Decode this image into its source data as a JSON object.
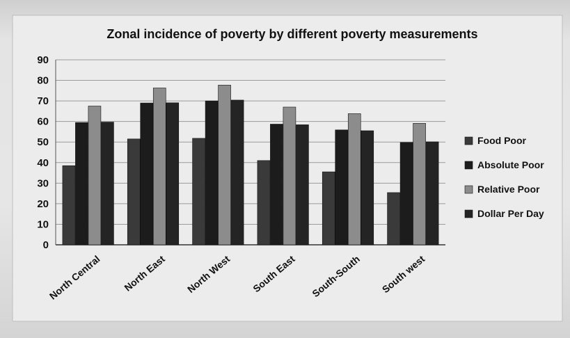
{
  "chart_data": {
    "type": "bar",
    "title": "Zonal incidence of poverty by different poverty measurements",
    "xlabel": "",
    "ylabel": "",
    "ylim": [
      0,
      90
    ],
    "yticks": [
      0,
      10,
      20,
      30,
      40,
      50,
      60,
      70,
      80,
      90
    ],
    "grid": true,
    "legend_position": "right",
    "categories": [
      "North Central",
      "North East",
      "North West",
      "South East",
      "South-South",
      "South west"
    ],
    "series": [
      {
        "name": "Food Poor",
        "color": "#3a3a3a",
        "values": [
          38.5,
          51.5,
          51.8,
          41.0,
          35.5,
          25.4
        ]
      },
      {
        "name": "Absolute Poor",
        "color": "#1c1c1c",
        "values": [
          59.5,
          69.0,
          70.0,
          58.7,
          55.9,
          49.8
        ]
      },
      {
        "name": "Relative Poor",
        "color": "#8c8c8c",
        "values": [
          67.5,
          76.3,
          77.7,
          67.0,
          63.8,
          59.1
        ]
      },
      {
        "name": "Dollar Per Day",
        "color": "#242424",
        "values": [
          59.7,
          69.1,
          70.4,
          58.4,
          55.5,
          50.1
        ]
      }
    ]
  }
}
